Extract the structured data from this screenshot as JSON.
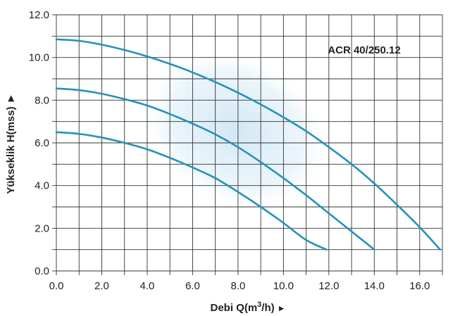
{
  "chart_data": {
    "type": "line",
    "title": "",
    "model_label": "ACR 40/250.12",
    "xlabel": {
      "prefix": "Debi Q(m",
      "sup": "3",
      "suffix": "/h)",
      "arrow": "►"
    },
    "ylabel": "Yükseklik H(mss) ►",
    "xlim": [
      0,
      17
    ],
    "ylim": [
      0,
      12
    ],
    "x_ticks": [
      "0.0",
      "2.0",
      "4.0",
      "6.0",
      "8.0",
      "10.0",
      "12.0",
      "14.0",
      "16.0"
    ],
    "y_ticks": [
      "0.0",
      "2.0",
      "4.0",
      "6.0",
      "8.0",
      "10.0",
      "12.0"
    ],
    "grid": true,
    "series": [
      {
        "color": "#2592b8",
        "x": [
          0,
          1,
          2,
          3,
          4,
          5,
          6,
          7,
          8,
          9,
          10,
          11,
          11.9
        ],
        "y": [
          6.5,
          6.42,
          6.25,
          6.0,
          5.7,
          5.3,
          4.85,
          4.35,
          3.7,
          3.0,
          2.25,
          1.45,
          1.0
        ]
      },
      {
        "color": "#2592b8",
        "x": [
          0,
          1,
          2,
          3,
          4,
          5,
          6,
          7,
          8,
          9,
          10,
          11,
          12,
          13,
          14.0
        ],
        "y": [
          8.55,
          8.47,
          8.3,
          8.05,
          7.75,
          7.35,
          6.9,
          6.4,
          5.8,
          5.1,
          4.35,
          3.55,
          2.7,
          1.85,
          1.0
        ]
      },
      {
        "color": "#2592b8",
        "x": [
          0,
          1,
          2,
          3,
          4,
          5,
          6,
          7,
          8,
          9,
          10,
          11,
          12,
          13,
          14,
          15,
          16,
          16.9
        ],
        "y": [
          10.85,
          10.78,
          10.6,
          10.35,
          10.05,
          9.7,
          9.3,
          8.85,
          8.35,
          7.8,
          7.2,
          6.55,
          5.8,
          5.0,
          4.1,
          3.1,
          2.05,
          1.0
        ]
      }
    ],
    "colors": {
      "curve": "#2592b8",
      "grid": "#333333",
      "shade": "#c9e3f2"
    }
  }
}
